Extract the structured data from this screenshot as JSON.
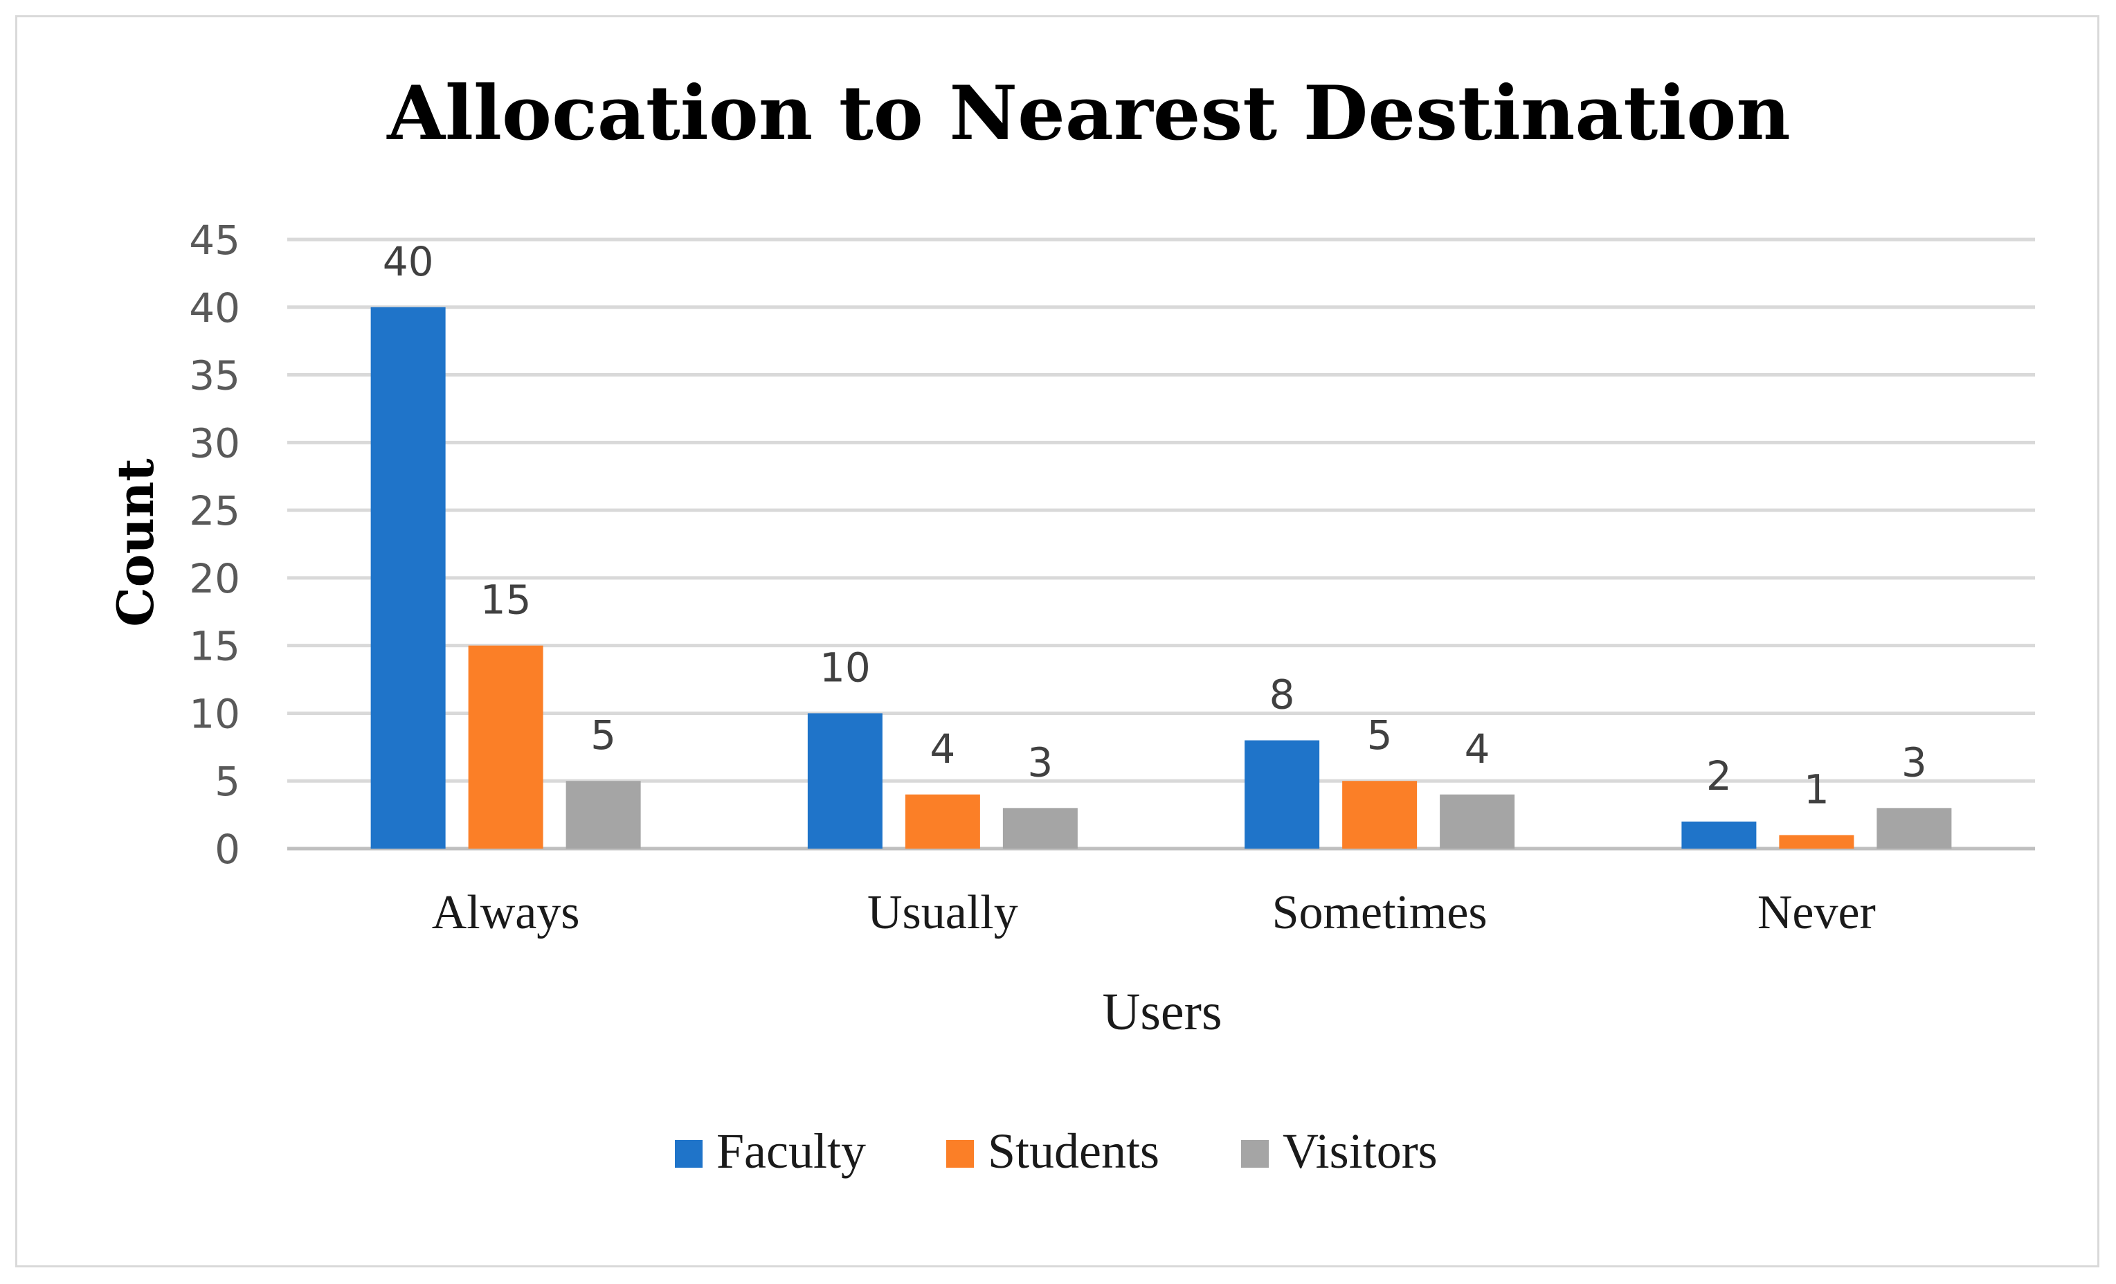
{
  "chart_data": {
    "type": "bar",
    "title": "Allocation to Nearest Destination",
    "xlabel": "Users",
    "ylabel": "Count",
    "categories": [
      "Always",
      "Usually",
      "Sometimes",
      "Never"
    ],
    "series": [
      {
        "name": "Faculty",
        "color": "#1f74c9",
        "values": [
          40,
          10,
          8,
          2
        ]
      },
      {
        "name": "Students",
        "color": "#fb7f27",
        "values": [
          15,
          4,
          5,
          1
        ]
      },
      {
        "name": "Visitors",
        "color": "#a5a5a5",
        "values": [
          5,
          3,
          4,
          3
        ]
      }
    ],
    "ylim": [
      0,
      45
    ],
    "yticks": [
      0,
      5,
      10,
      15,
      20,
      25,
      30,
      35,
      40,
      45
    ],
    "grid": true,
    "legend_position": "bottom"
  }
}
